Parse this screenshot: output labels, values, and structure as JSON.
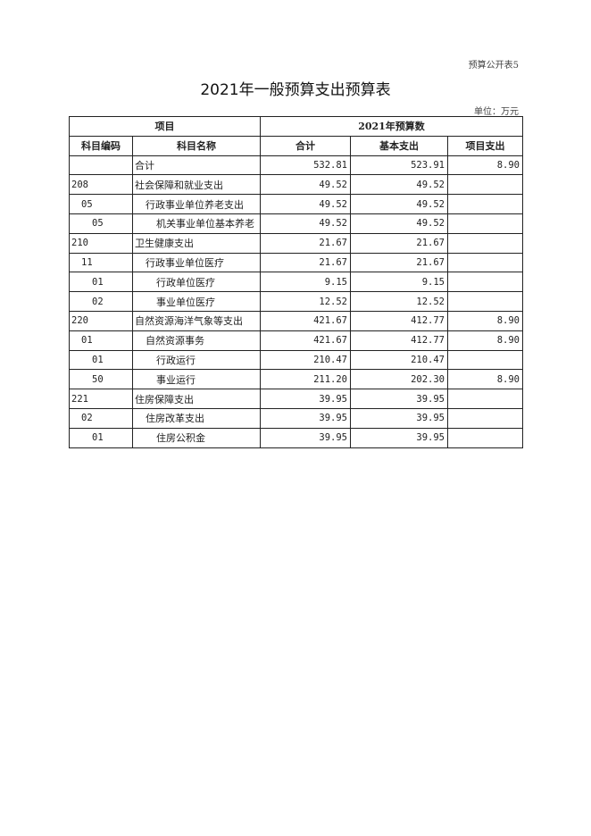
{
  "doc_tag": "预算公开表5",
  "title": "2021年一般预算支出预算表",
  "unit": "单位：万元",
  "header": {
    "group_item": "项目",
    "group_budget": "2021年预算数",
    "code": "科目编码",
    "name": "科目名称",
    "total": "合计",
    "basic": "基本支出",
    "project": "项目支出"
  },
  "rows": [
    {
      "level": 0,
      "code": "",
      "name": "合计",
      "total": "532.81",
      "basic": "523.91",
      "project": "8.90"
    },
    {
      "level": 0,
      "code": "208",
      "name": "社会保障和就业支出",
      "total": "49.52",
      "basic": "49.52",
      "project": ""
    },
    {
      "level": 1,
      "code": "05",
      "name": "行政事业单位养老支出",
      "total": "49.52",
      "basic": "49.52",
      "project": ""
    },
    {
      "level": 2,
      "code": "05",
      "name": "机关事业单位基本养老",
      "total": "49.52",
      "basic": "49.52",
      "project": ""
    },
    {
      "level": 0,
      "code": "210",
      "name": "卫生健康支出",
      "total": "21.67",
      "basic": "21.67",
      "project": ""
    },
    {
      "level": 1,
      "code": "11",
      "name": "行政事业单位医疗",
      "total": "21.67",
      "basic": "21.67",
      "project": ""
    },
    {
      "level": 2,
      "code": "01",
      "name": "行政单位医疗",
      "total": "9.15",
      "basic": "9.15",
      "project": ""
    },
    {
      "level": 2,
      "code": "02",
      "name": "事业单位医疗",
      "total": "12.52",
      "basic": "12.52",
      "project": ""
    },
    {
      "level": 0,
      "code": "220",
      "name": "自然资源海洋气象等支出",
      "total": "421.67",
      "basic": "412.77",
      "project": "8.90"
    },
    {
      "level": 1,
      "code": "01",
      "name": "自然资源事务",
      "total": "421.67",
      "basic": "412.77",
      "project": "8.90"
    },
    {
      "level": 2,
      "code": "01",
      "name": "行政运行",
      "total": "210.47",
      "basic": "210.47",
      "project": ""
    },
    {
      "level": 2,
      "code": "50",
      "name": "事业运行",
      "total": "211.20",
      "basic": "202.30",
      "project": "8.90"
    },
    {
      "level": 0,
      "code": "221",
      "name": "住房保障支出",
      "total": "39.95",
      "basic": "39.95",
      "project": ""
    },
    {
      "level": 1,
      "code": "02",
      "name": "住房改革支出",
      "total": "39.95",
      "basic": "39.95",
      "project": ""
    },
    {
      "level": 2,
      "code": "01",
      "name": "住房公积金",
      "total": "39.95",
      "basic": "39.95",
      "project": ""
    }
  ]
}
